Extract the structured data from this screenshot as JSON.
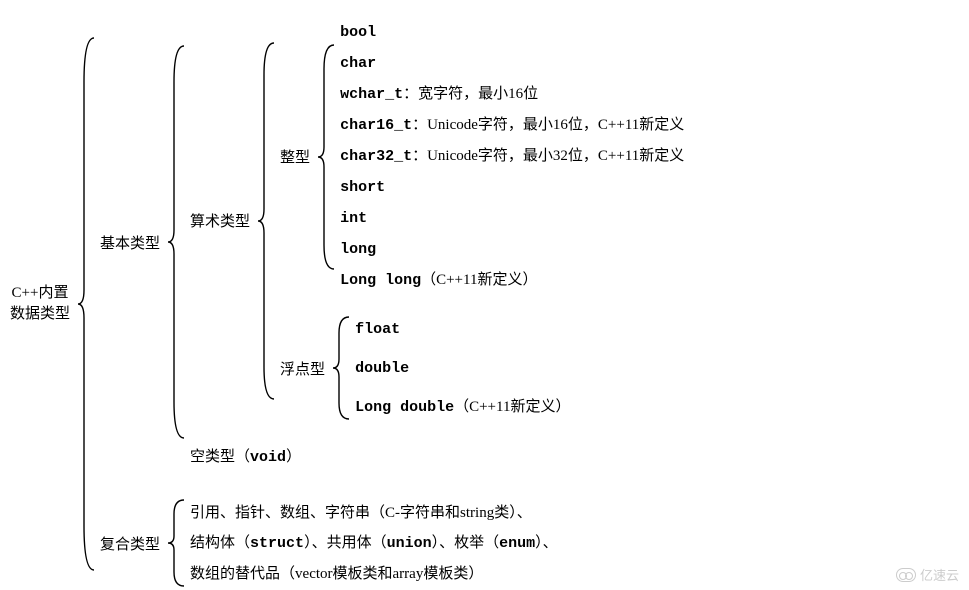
{
  "font_sizes": {
    "base": 15
  },
  "colors": {
    "text": "#000000",
    "background": "#ffffff",
    "brace": "#000000",
    "watermark": "#cccccc"
  },
  "root": {
    "line1": "C++内置",
    "line2": "数据类型"
  },
  "basic": {
    "label": "基本类型",
    "arithmetic": {
      "label": "算术类型",
      "integer": {
        "label": "整型",
        "items": [
          {
            "code": "bool",
            "rest": ""
          },
          {
            "code": "char",
            "rest": ""
          },
          {
            "code": "wchar_t",
            "rest": "：宽字符，最小16位"
          },
          {
            "code": "char16_t",
            "rest": "：Unicode字符，最小16位，C++11新定义"
          },
          {
            "code": "char32_t",
            "rest": "：Unicode字符，最小32位，C++11新定义"
          },
          {
            "code": "short",
            "rest": ""
          },
          {
            "code": "int",
            "rest": ""
          },
          {
            "code": "long",
            "rest": ""
          },
          {
            "code": "Long long",
            "rest": "（C++11新定义）"
          }
        ]
      },
      "floating": {
        "label": "浮点型",
        "items": [
          {
            "code": "float",
            "rest": ""
          },
          {
            "code": "double",
            "rest": ""
          },
          {
            "code": "Long double",
            "rest": "（C++11新定义）"
          }
        ]
      }
    },
    "void": {
      "prefix": "空类型（",
      "code": "void",
      "suffix": "）"
    }
  },
  "compound": {
    "label": "复合类型",
    "line1": "引用、指针、数组、字符串（C-字符串和string类）、",
    "line2_pre": "结构体（",
    "line2_code1": "struct",
    "line2_mid1": "）、共用体（",
    "line2_code2": "union",
    "line2_mid2": "）、枚举（",
    "line2_code3": "enum",
    "line2_end": "）、",
    "line3": "数组的替代品（vector模板类和array模板类）"
  },
  "watermark": "亿速云"
}
